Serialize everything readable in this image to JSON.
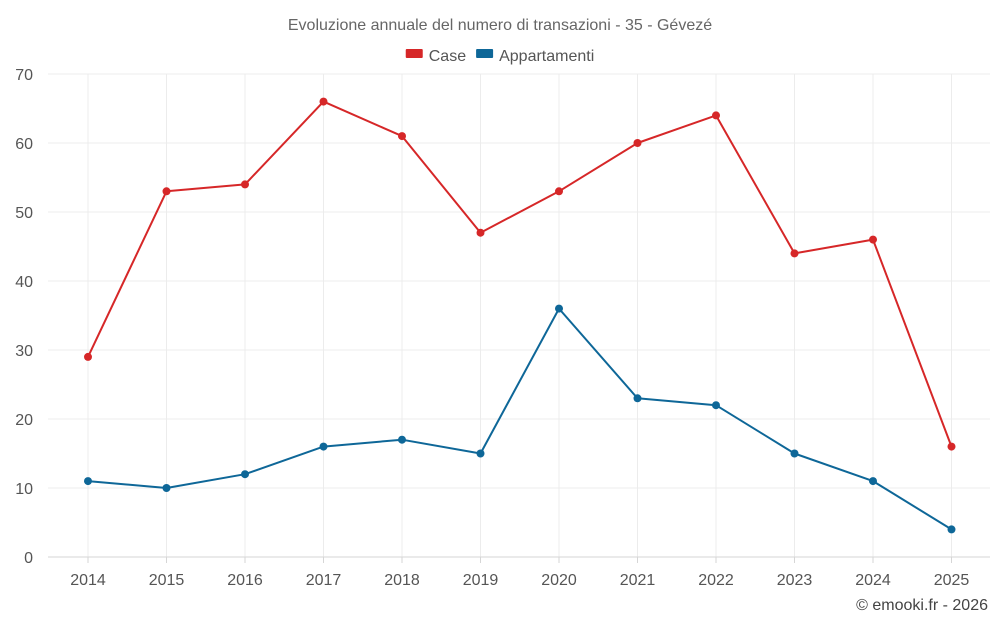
{
  "chart_data": {
    "type": "line",
    "title": "Evoluzione annuale del numero di transazioni - 35 - Gévezé",
    "categories": [
      "2014",
      "2015",
      "2016",
      "2017",
      "2018",
      "2019",
      "2020",
      "2021",
      "2022",
      "2023",
      "2024",
      "2025"
    ],
    "series": [
      {
        "name": "Case",
        "color": "#d62728",
        "values": [
          29,
          53,
          54,
          66,
          61,
          47,
          53,
          60,
          64,
          44,
          46,
          16
        ]
      },
      {
        "name": "Appartamenti",
        "color": "#0e6798",
        "values": [
          11,
          10,
          12,
          16,
          17,
          15,
          36,
          23,
          22,
          15,
          11,
          4
        ]
      }
    ],
    "xlabel": "",
    "ylabel": "",
    "ylim": [
      0,
      70
    ],
    "yticks": [
      "0",
      "10",
      "20",
      "30",
      "40",
      "50",
      "60",
      "70"
    ],
    "grid": true,
    "legend_position": "top-center"
  },
  "credit": "© emooki.fr - 2026"
}
